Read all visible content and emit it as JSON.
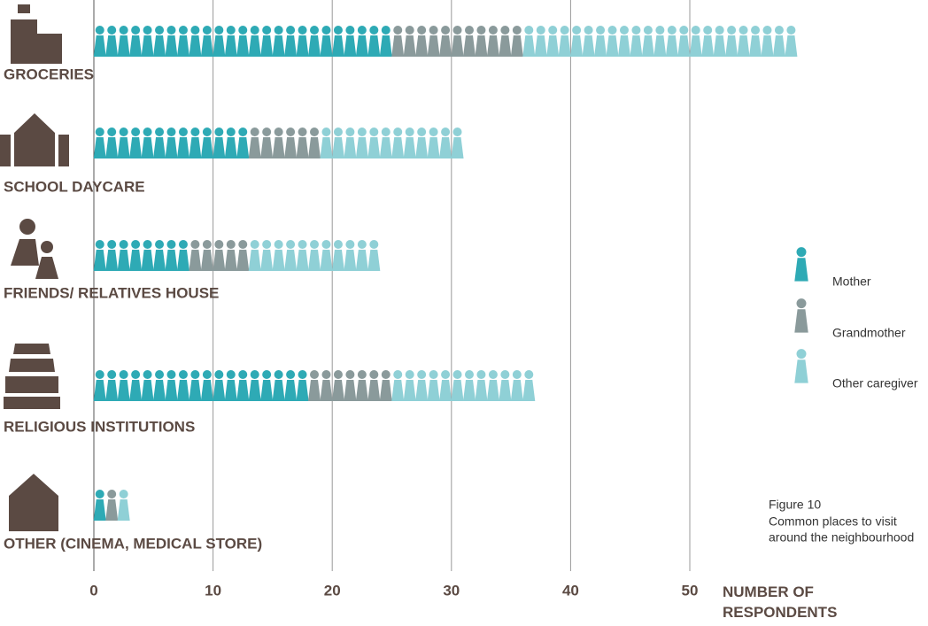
{
  "chart_data": {
    "type": "pictograph",
    "categories": [
      "GROCERIES",
      "SCHOOL DAYCARE",
      "FRIENDS/ RELATIVES HOUSE",
      "RELIGIOUS INSTITUTIONS",
      "OTHER (CINEMA, MEDICAL STORE)"
    ],
    "series": [
      {
        "name": "Mother",
        "color": "#2eaab5",
        "values": [
          25,
          13,
          8,
          18,
          1
        ]
      },
      {
        "name": "Grandmother",
        "color": "#8a9a9b",
        "values": [
          11,
          6,
          5,
          7,
          1
        ]
      },
      {
        "name": "Other caregiver",
        "color": "#8fd0d6",
        "values": [
          23,
          12,
          11,
          12,
          1
        ]
      }
    ],
    "xlim": [
      0,
      50
    ],
    "xticks": [
      0,
      10,
      20,
      30,
      40,
      50
    ],
    "grid": true,
    "x_label": "NUMBER OF RESPONDENTS",
    "caption": {
      "figure": "Figure 10",
      "lines": [
        "Common places to visit",
        "around the neighbourhood"
      ]
    }
  }
}
